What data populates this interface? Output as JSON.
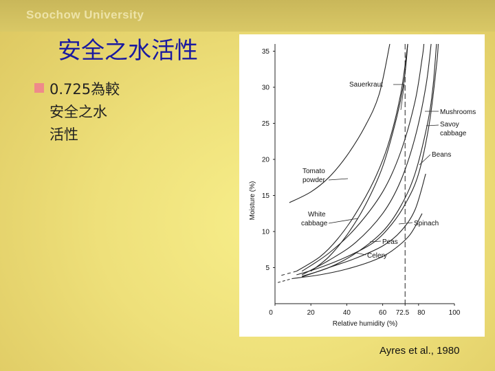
{
  "header": {
    "institution": "Soochow University"
  },
  "slide": {
    "title": "安全之水活性",
    "bullet_lines": [
      "0.725為較",
      "安全之水",
      "活性"
    ],
    "citation": "Ayres et al., 1980",
    "bullet_color": "#ef8a8a",
    "title_color": "#1a1aa0"
  },
  "chart_data": {
    "type": "line",
    "xlabel": "Relative humidity (%)",
    "ylabel": "Moisture (%)",
    "xlim": [
      0,
      100
    ],
    "ylim": [
      0,
      36
    ],
    "xticks": [
      "0",
      "20",
      "40",
      "60",
      "72.5",
      "80",
      "100"
    ],
    "yticks": [
      "5",
      "10",
      "15",
      "20",
      "25",
      "30",
      "35"
    ],
    "reference_line": {
      "x": 72.5,
      "style": "dashed"
    },
    "series": [
      {
        "name": "Sauerkraut",
        "points": [
          [
            20,
            4.5
          ],
          [
            30,
            6.5
          ],
          [
            40,
            9.5
          ],
          [
            50,
            13.5
          ],
          [
            60,
            19
          ],
          [
            68,
            26
          ],
          [
            72,
            31
          ],
          [
            74,
            36
          ]
        ]
      },
      {
        "name": "Mushrooms",
        "points": [
          [
            15,
            4.5
          ],
          [
            30,
            7
          ],
          [
            45,
            10.5
          ],
          [
            60,
            15.5
          ],
          [
            70,
            21
          ],
          [
            78,
            28
          ],
          [
            82,
            34
          ],
          [
            83,
            36
          ]
        ]
      },
      {
        "name": "Savoy cabbage",
        "points": [
          [
            15,
            4
          ],
          [
            30,
            6
          ],
          [
            45,
            8.5
          ],
          [
            60,
            12.5
          ],
          [
            70,
            17
          ],
          [
            78,
            23
          ],
          [
            84,
            30
          ],
          [
            87,
            36
          ]
        ]
      },
      {
        "name": "Beans",
        "points": [
          [
            15,
            3.8
          ],
          [
            30,
            5
          ],
          [
            45,
            7
          ],
          [
            60,
            10
          ],
          [
            70,
            13.5
          ],
          [
            78,
            18
          ],
          [
            85,
            25
          ],
          [
            88,
            30
          ],
          [
            90,
            36
          ]
        ]
      },
      {
        "name": "Tomato powder",
        "points": [
          [
            8,
            14
          ],
          [
            20,
            15.5
          ],
          [
            30,
            17.5
          ],
          [
            40,
            20.5
          ],
          [
            50,
            24.5
          ],
          [
            58,
            29
          ],
          [
            64,
            36
          ]
        ]
      },
      {
        "name": "White cabbage",
        "points": [
          [
            12,
            4.5
          ],
          [
            25,
            6.5
          ],
          [
            35,
            9
          ],
          [
            45,
            12.5
          ],
          [
            55,
            17
          ],
          [
            63,
            22
          ],
          [
            70,
            29
          ],
          [
            74,
            36
          ]
        ]
      },
      {
        "name": "Spinach",
        "points": [
          [
            12,
            4
          ],
          [
            25,
            5
          ],
          [
            40,
            6.5
          ],
          [
            55,
            8.5
          ],
          [
            65,
            11
          ],
          [
            73,
            14
          ],
          [
            80,
            18
          ],
          [
            86,
            25
          ],
          [
            90,
            33
          ],
          [
            91,
            36
          ]
        ]
      },
      {
        "name": "Peas",
        "points": [
          [
            15,
            3.7
          ],
          [
            30,
            5
          ],
          [
            45,
            6.3
          ],
          [
            60,
            8
          ],
          [
            70,
            10
          ],
          [
            78,
            13
          ],
          [
            84,
            18
          ]
        ]
      },
      {
        "name": "Celery",
        "points": [
          [
            10,
            3.5
          ],
          [
            25,
            4
          ],
          [
            40,
            4.8
          ],
          [
            55,
            6
          ],
          [
            65,
            7.3
          ],
          [
            75,
            9.5
          ],
          [
            82,
            12.5
          ]
        ]
      }
    ],
    "curve_labels": [
      {
        "text": "Sauerkraut"
      },
      {
        "text": "Mushrooms"
      },
      {
        "text": "Savoy"
      },
      {
        "text": "cabbage"
      },
      {
        "text": "Beans"
      },
      {
        "text": "Tomato"
      },
      {
        "text": "powder"
      },
      {
        "text": "White"
      },
      {
        "text": "cabbage"
      },
      {
        "text": "Spinach"
      },
      {
        "text": "Peas"
      },
      {
        "text": "Celery"
      }
    ]
  }
}
